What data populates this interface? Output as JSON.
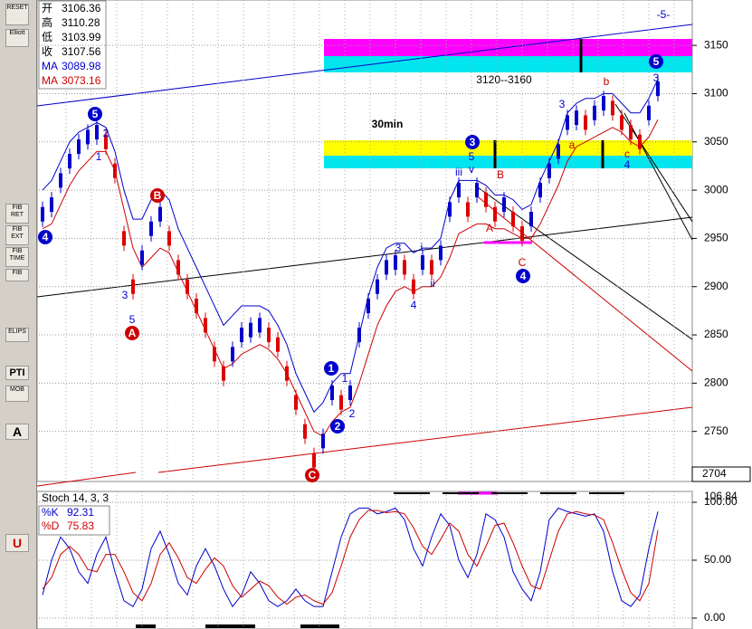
{
  "chart_data": [
    {
      "type": "price",
      "ylim": [
        2700,
        3197
      ],
      "yticks": [
        2750,
        2800,
        2850,
        2900,
        2950,
        3000,
        3050,
        3100,
        3150
      ],
      "cursor_label": "2704",
      "series": [
        {
          "color": "#0000cc",
          "values": [
            2975,
            2985,
            3010,
            3030,
            3045,
            3055,
            3060,
            3050,
            3020,
            2950,
            2900,
            2930,
            2960,
            2975,
            2950,
            2920,
            2900,
            2880,
            2860,
            2830,
            2810,
            2830,
            2850,
            2855,
            2860,
            2850,
            2840,
            2810,
            2780,
            2750,
            2720,
            2740,
            2790,
            2780,
            2790,
            2850,
            2880,
            2900,
            2920,
            2925,
            2920,
            2900,
            2925,
            2920,
            2935,
            2980,
            3000,
            2980,
            3000,
            2990,
            2975,
            2985,
            2970,
            2955,
            2970,
            3000,
            3020,
            3040,
            3070,
            3075,
            3070,
            3080,
            3090,
            3085,
            3070,
            3060,
            3050,
            3080,
            3105
          ]
        },
        {
          "color": "#0000cc",
          "values": [
            3000,
            3010,
            3030,
            3050,
            3060,
            3065,
            3070,
            3065,
            3040,
            3000,
            2970,
            2970,
            2990,
            3000,
            2990,
            2960,
            2940,
            2920,
            2900,
            2880,
            2860,
            2870,
            2880,
            2880,
            2880,
            2875,
            2860,
            2840,
            2810,
            2790,
            2770,
            2780,
            2800,
            2810,
            2810,
            2850,
            2890,
            2920,
            2940,
            2945,
            2945,
            2935,
            2940,
            2940,
            2950,
            2990,
            3010,
            3010,
            3010,
            3005,
            2995,
            2995,
            2990,
            2980,
            2985,
            3010,
            3030,
            3050,
            3080,
            3090,
            3095,
            3095,
            3100,
            3100,
            3090,
            3080,
            3080,
            3095,
            3115
          ]
        },
        {
          "color": "#cc0000",
          "values": [
            2960,
            2965,
            2985,
            3005,
            3020,
            3030,
            3040,
            3040,
            3020,
            2980,
            2940,
            2920,
            2930,
            2940,
            2935,
            2915,
            2895,
            2875,
            2855,
            2835,
            2815,
            2820,
            2830,
            2835,
            2840,
            2835,
            2825,
            2810,
            2790,
            2770,
            2750,
            2745,
            2760,
            2770,
            2775,
            2800,
            2830,
            2860,
            2880,
            2895,
            2900,
            2895,
            2900,
            2900,
            2910,
            2930,
            2955,
            2960,
            2965,
            2965,
            2960,
            2960,
            2955,
            2950,
            2950,
            2965,
            2985,
            3005,
            3030,
            3045,
            3050,
            3055,
            3060,
            3065,
            3060,
            3050,
            3045,
            3055,
            3073
          ]
        }
      ],
      "info": [
        [
          "开",
          "3106.36"
        ],
        [
          "高",
          "3110.28"
        ],
        [
          "低",
          "3103.99"
        ],
        [
          "收",
          "3107.56"
        ],
        [
          "MA",
          "3089.98"
        ],
        [
          "MA",
          "3073.16"
        ]
      ],
      "annotations": [
        {
          "text": "30min"
        },
        {
          "text": "3120--3160"
        },
        {
          "text": "-5-"
        },
        {
          "text": "5"
        },
        {
          "text": "4"
        },
        {
          "text": "B"
        },
        {
          "text": "A"
        },
        {
          "text": "C"
        },
        {
          "text": "1"
        },
        {
          "text": "2"
        },
        {
          "text": "3"
        },
        {
          "text": "4"
        },
        {
          "text": "5"
        },
        {
          "text": "1"
        },
        {
          "text": "3"
        },
        {
          "text": "5"
        },
        {
          "text": "2"
        },
        {
          "text": "1"
        },
        {
          "text": "2"
        },
        {
          "text": "3"
        },
        {
          "text": "4"
        },
        {
          "text": "i"
        },
        {
          "text": "ii"
        },
        {
          "text": "iii"
        },
        {
          "text": "v"
        },
        {
          "text": "5"
        },
        {
          "text": "B"
        },
        {
          "text": "A"
        },
        {
          "text": "C"
        },
        {
          "text": "3"
        },
        {
          "text": "b"
        },
        {
          "text": "a"
        },
        {
          "text": "c"
        },
        {
          "text": "4"
        },
        {
          "text": "3"
        }
      ]
    },
    {
      "type": "stoch",
      "title": "Stoch 14, 3, 3",
      "ylim": [
        -9.4,
        107.8
      ],
      "yticks": [
        {
          "value": 0,
          "label": "0.00"
        },
        {
          "value": 50,
          "label": "50.00"
        },
        {
          "value": 100,
          "label": "100.00"
        }
      ],
      "cursor_label": "106.84",
      "series": [
        {
          "name": "%K",
          "color": "#0000cc",
          "last": "92.31",
          "values": [
            20,
            50,
            70,
            60,
            40,
            30,
            55,
            70,
            40,
            15,
            10,
            25,
            60,
            75,
            55,
            30,
            20,
            45,
            60,
            45,
            25,
            10,
            20,
            40,
            30,
            15,
            10,
            15,
            25,
            15,
            10,
            10,
            40,
            70,
            90,
            95,
            95,
            90,
            92,
            95,
            85,
            60,
            45,
            70,
            90,
            80,
            50,
            35,
            55,
            90,
            85,
            70,
            40,
            25,
            15,
            40,
            85,
            95,
            92,
            90,
            88,
            90,
            75,
            40,
            15,
            10,
            20,
            60,
            92
          ]
        },
        {
          "name": "%D",
          "color": "#cc0000",
          "last": "75.83",
          "values": [
            25,
            35,
            55,
            62,
            55,
            42,
            40,
            55,
            55,
            40,
            22,
            15,
            30,
            55,
            65,
            52,
            35,
            30,
            42,
            52,
            45,
            28,
            18,
            25,
            32,
            28,
            18,
            12,
            18,
            20,
            15,
            12,
            22,
            45,
            70,
            85,
            93,
            93,
            91,
            92,
            90,
            78,
            62,
            55,
            68,
            82,
            75,
            55,
            45,
            62,
            80,
            82,
            65,
            45,
            28,
            25,
            50,
            75,
            90,
            92,
            90,
            89,
            85,
            65,
            42,
            22,
            15,
            30,
            76
          ]
        }
      ]
    }
  ],
  "toolbar": [
    "RESET",
    "Elliott",
    "FIB RET",
    "FIB EXT",
    "FIB TIME",
    "FIB",
    "ELIPS",
    "PTI",
    "MOB",
    "A",
    "U"
  ]
}
